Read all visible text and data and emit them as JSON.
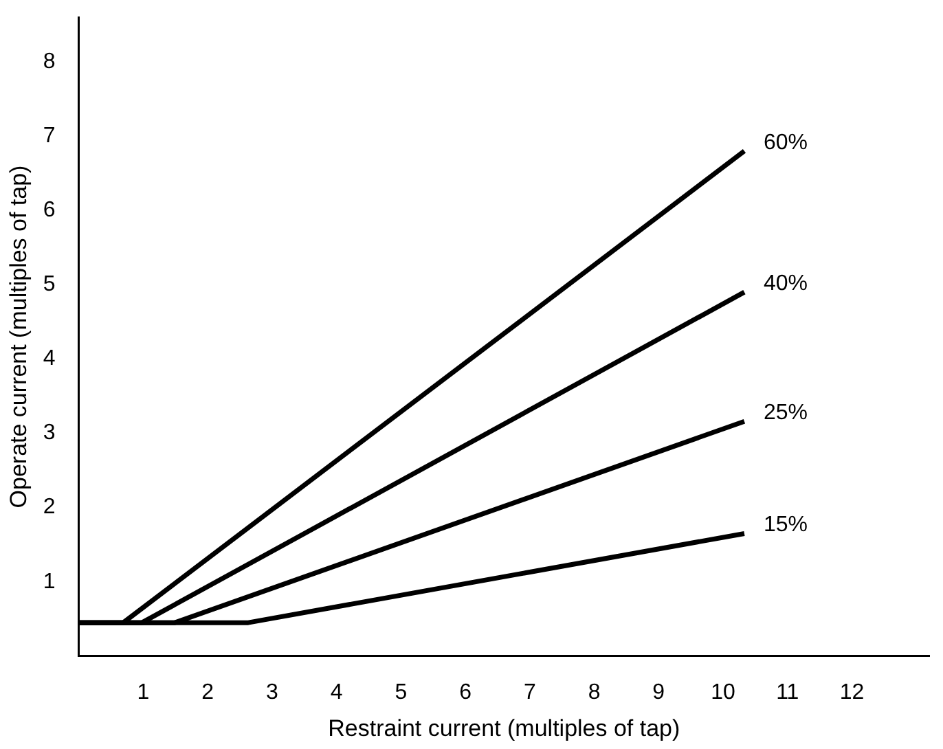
{
  "chart_data": {
    "type": "line",
    "xlabel": "Restraint current (multiples of tap)",
    "ylabel": "Operate current (multiples of tap)",
    "xlim": [
      0,
      13.2
    ],
    "ylim": [
      0,
      8.6
    ],
    "xticks": [
      1,
      2,
      3,
      4,
      5,
      6,
      7,
      8,
      9,
      10,
      11,
      12
    ],
    "yticks": [
      1,
      2,
      3,
      4,
      5,
      6,
      7,
      8
    ],
    "grid": false,
    "legend": false,
    "marker": "none",
    "line_style": "solid",
    "series": [
      {
        "name": "60%",
        "color": "#000000",
        "x": [
          0,
          0.69,
          10.33
        ],
        "values": [
          0.45,
          0.45,
          6.8
        ]
      },
      {
        "name": "40%",
        "color": "#000000",
        "x": [
          0,
          0.98,
          10.33
        ],
        "values": [
          0.45,
          0.45,
          4.9
        ]
      },
      {
        "name": "25%",
        "color": "#000000",
        "x": [
          0,
          1.49,
          10.33
        ],
        "values": [
          0.45,
          0.45,
          3.16
        ]
      },
      {
        "name": "15%",
        "color": "#000000",
        "x": [
          0,
          2.63,
          10.33
        ],
        "values": [
          0.45,
          0.45,
          1.65
        ]
      }
    ]
  }
}
